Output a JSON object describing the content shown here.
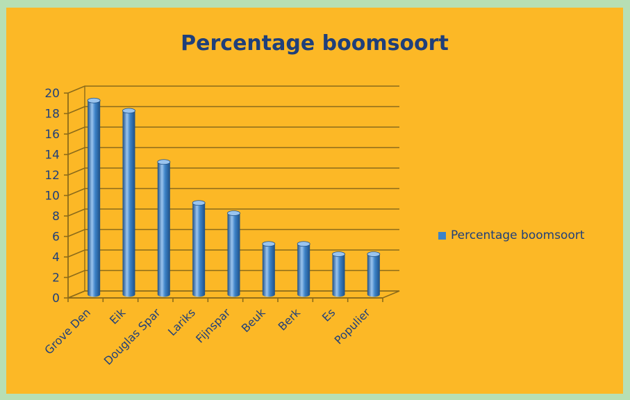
{
  "chart_data": {
    "type": "bar",
    "title": "Percentage boomsoort",
    "categories": [
      "Grove Den",
      "Eik",
      "Douglas Spar",
      "Lariks",
      "Fijnspar",
      "Beuk",
      "Berk",
      "Es",
      "Populier"
    ],
    "series": [
      {
        "name": "Percentage boomsoort",
        "values": [
          19,
          18,
          13,
          9,
          8,
          5,
          5,
          4,
          4
        ]
      }
    ],
    "ylim": [
      0,
      20
    ],
    "yticks": [
      0,
      2,
      4,
      6,
      8,
      10,
      12,
      14,
      16,
      18,
      20
    ],
    "grid": true,
    "legend_position": "right",
    "colors": {
      "bar": "#3d83c8",
      "bar_dark": "#1d4f86",
      "bar_light": "#9ac4ee",
      "grid": "#8a6a1a",
      "text": "#1f3f7a",
      "background": "#fcb826",
      "page": "#b7dfb4"
    }
  }
}
